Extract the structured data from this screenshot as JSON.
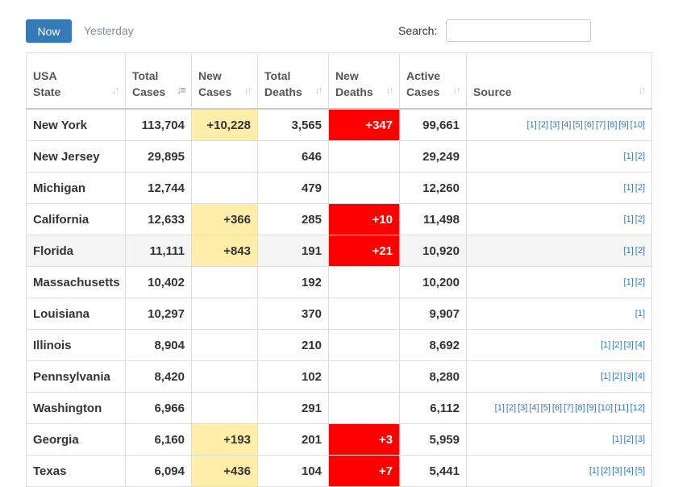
{
  "buttons": {
    "now": "Now",
    "yesterday": "Yesterday"
  },
  "search": {
    "label": "Search:",
    "value": ""
  },
  "table": {
    "headers": [
      {
        "line1": "USA",
        "line2": "State"
      },
      {
        "line1": "Total",
        "line2": "Cases"
      },
      {
        "line1": "New",
        "line2": "Cases"
      },
      {
        "line1": "Total",
        "line2": "Deaths"
      },
      {
        "line1": "New",
        "line2": "Deaths"
      },
      {
        "line1": "Active",
        "line2": "Cases"
      },
      {
        "line1": "",
        "line2": "Source"
      }
    ],
    "rows": [
      {
        "state": "New York",
        "total_cases": "113,704",
        "new_cases": "+10,228",
        "total_deaths": "3,565",
        "new_deaths": "+347",
        "active_cases": "99,661",
        "sources": [
          "[1]",
          "[2]",
          "[3]",
          "[4]",
          "[5]",
          "[6]",
          "[7]",
          "[8]",
          "[9]",
          "[10]"
        ]
      },
      {
        "state": "New Jersey",
        "total_cases": "29,895",
        "new_cases": "",
        "total_deaths": "646",
        "new_deaths": "",
        "active_cases": "29,249",
        "sources": [
          "[1]",
          "[2]"
        ]
      },
      {
        "state": "Michigan",
        "total_cases": "12,744",
        "new_cases": "",
        "total_deaths": "479",
        "new_deaths": "",
        "active_cases": "12,260",
        "sources": [
          "[1]",
          "[2]"
        ]
      },
      {
        "state": "California",
        "total_cases": "12,633",
        "new_cases": "+366",
        "total_deaths": "285",
        "new_deaths": "+10",
        "active_cases": "11,498",
        "sources": [
          "[1]",
          "[2]"
        ]
      },
      {
        "state": "Florida",
        "total_cases": "11,111",
        "new_cases": "+843",
        "total_deaths": "191",
        "new_deaths": "+21",
        "active_cases": "10,920",
        "sources": [
          "[1]",
          "[2]"
        ]
      },
      {
        "state": "Massachusetts",
        "total_cases": "10,402",
        "new_cases": "",
        "total_deaths": "192",
        "new_deaths": "",
        "active_cases": "10,200",
        "sources": [
          "[1]",
          "[2]"
        ]
      },
      {
        "state": "Louisiana",
        "total_cases": "10,297",
        "new_cases": "",
        "total_deaths": "370",
        "new_deaths": "",
        "active_cases": "9,907",
        "sources": [
          "[1]"
        ]
      },
      {
        "state": "Illinois",
        "total_cases": "8,904",
        "new_cases": "",
        "total_deaths": "210",
        "new_deaths": "",
        "active_cases": "8,692",
        "sources": [
          "[1]",
          "[2]",
          "[3]",
          "[4]"
        ]
      },
      {
        "state": "Pennsylvania",
        "total_cases": "8,420",
        "new_cases": "",
        "total_deaths": "102",
        "new_deaths": "",
        "active_cases": "8,280",
        "sources": [
          "[1]",
          "[2]",
          "[3]",
          "[4]"
        ]
      },
      {
        "state": "Washington",
        "total_cases": "6,966",
        "new_cases": "",
        "total_deaths": "291",
        "new_deaths": "",
        "active_cases": "6,112",
        "sources": [
          "[1]",
          "[2]",
          "[3]",
          "[4]",
          "[5]",
          "[6]",
          "[7]",
          "[8]",
          "[9]",
          "[10]",
          "[11]",
          "[12]"
        ]
      },
      {
        "state": "Georgia",
        "total_cases": "6,160",
        "new_cases": "+193",
        "total_deaths": "201",
        "new_deaths": "+3",
        "active_cases": "5,959",
        "sources": [
          "[1]",
          "[2]",
          "[3]"
        ]
      },
      {
        "state": "Texas",
        "total_cases": "6,094",
        "new_cases": "+436",
        "total_deaths": "104",
        "new_deaths": "+7",
        "active_cases": "5,441",
        "sources": [
          "[1]",
          "[2]",
          "[3]",
          "[4]",
          "[5]"
        ]
      }
    ],
    "highlighted_row": "Florida"
  },
  "colors": {
    "primary": "#337ab7",
    "new_cases_bg": "#ffeeaa",
    "new_deaths_bg": "#ff0000"
  },
  "icons": {
    "sort": "sort-icon",
    "sort_active": "sort-desc-icon"
  }
}
